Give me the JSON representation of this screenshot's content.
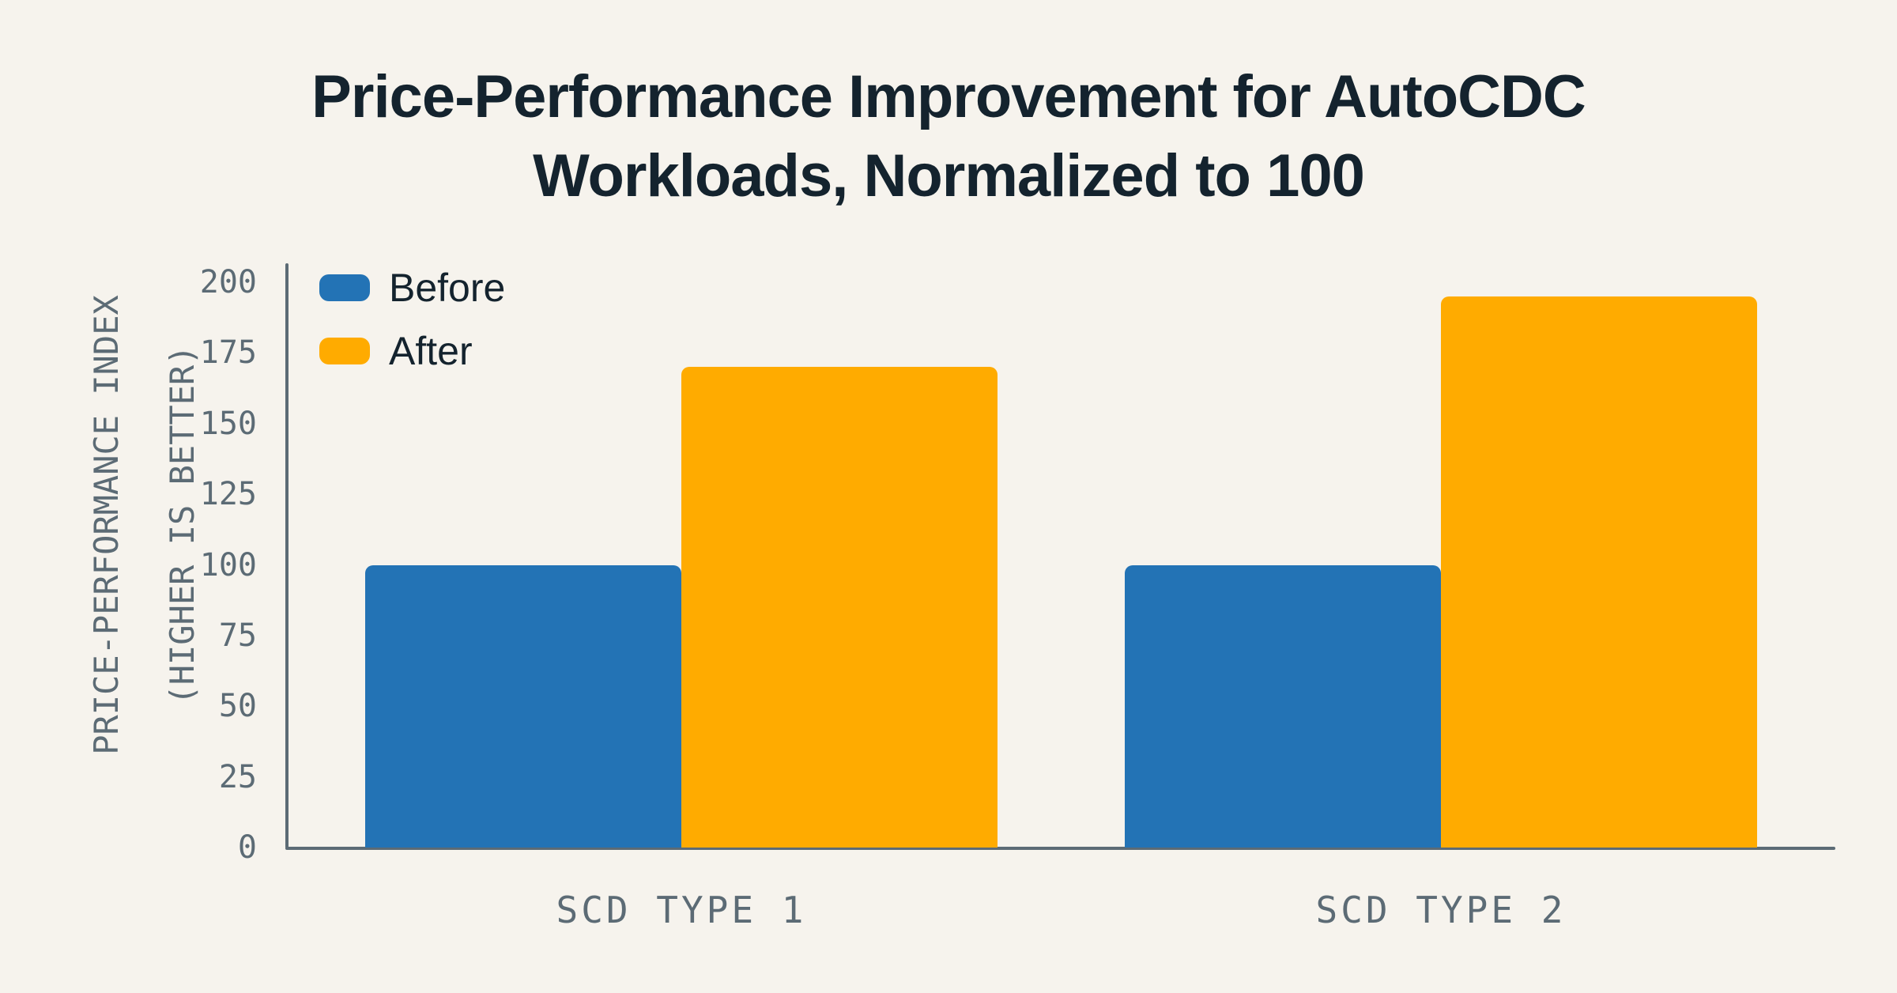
{
  "colors": {
    "background": "#F6F3ED",
    "title_text": "#14232E",
    "axis": "#5C6B75",
    "series_before": "#2373B5",
    "series_after": "#FFAB00"
  },
  "chart_data": {
    "type": "bar",
    "title": "Price-Performance Improvement for AutoCDC Workloads, Normalized to 100",
    "title_lines": [
      "Price-Performance Improvement for AutoCDC",
      "Workloads, Normalized to 100"
    ],
    "ylabel": "PRICE-PERFORMANCE INDEX (HIGHER IS BETTER)",
    "ylabel_lines": [
      "PRICE-PERFORMANCE INDEX",
      "(HIGHER IS BETTER)"
    ],
    "xlabel": "",
    "categories": [
      "SCD TYPE 1",
      "SCD TYPE 2"
    ],
    "series": [
      {
        "name": "Before",
        "color": "#2373B5",
        "values": [
          100,
          100
        ]
      },
      {
        "name": "After",
        "color": "#FFAB00",
        "values": [
          170,
          195
        ]
      }
    ],
    "ylim": [
      0,
      200
    ],
    "yticks": [
      0,
      25,
      50,
      75,
      100,
      125,
      150,
      175,
      200
    ],
    "grid": false,
    "legend_position": "top-left"
  }
}
